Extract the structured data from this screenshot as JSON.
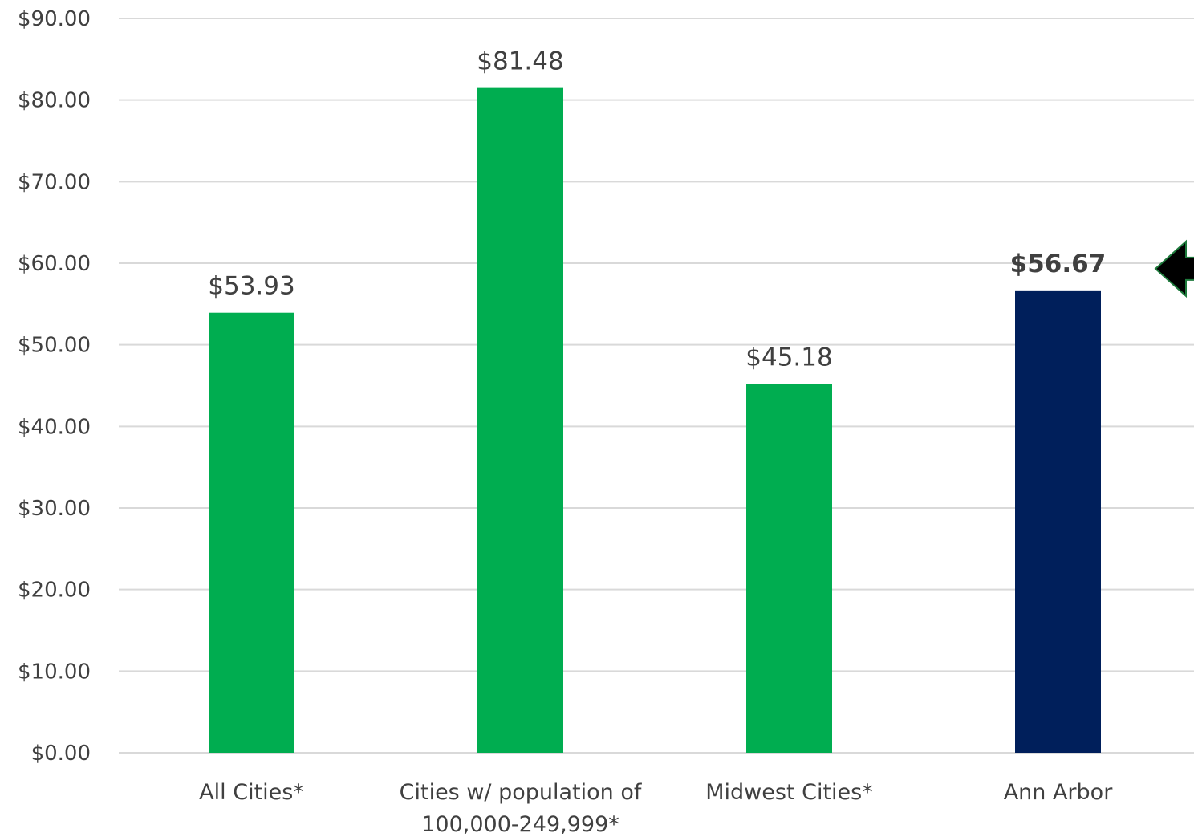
{
  "chart_data": {
    "type": "bar",
    "title": "",
    "xlabel": "",
    "ylabel": "",
    "ylim": [
      0,
      90
    ],
    "ytick_step": 10,
    "ytick_labels": [
      "$0.00",
      "$10.00",
      "$20.00",
      "$30.00",
      "$40.00",
      "$50.00",
      "$60.00",
      "$70.00",
      "$80.00",
      "$90.00"
    ],
    "grid": true,
    "categories": [
      [
        "All Cities*"
      ],
      [
        "Cities w/ population of",
        "100,000-249,999*"
      ],
      [
        "Midwest Cities*"
      ],
      [
        "Ann Arbor"
      ]
    ],
    "values": [
      53.93,
      81.48,
      45.18,
      56.67
    ],
    "data_labels": [
      "$53.93",
      "$81.48",
      "$45.18",
      "$56.67"
    ],
    "bar_colors": [
      "#00ad50",
      "#00ad50",
      "#00ad50",
      "#001f5b"
    ],
    "highlight_index": 3,
    "highlight_marker": "left-arrow",
    "arrow_colors": {
      "fill": "#000000",
      "outline": "#1e7a3c"
    },
    "label_color": "#404040",
    "grid_color": "#d9d9d9"
  }
}
